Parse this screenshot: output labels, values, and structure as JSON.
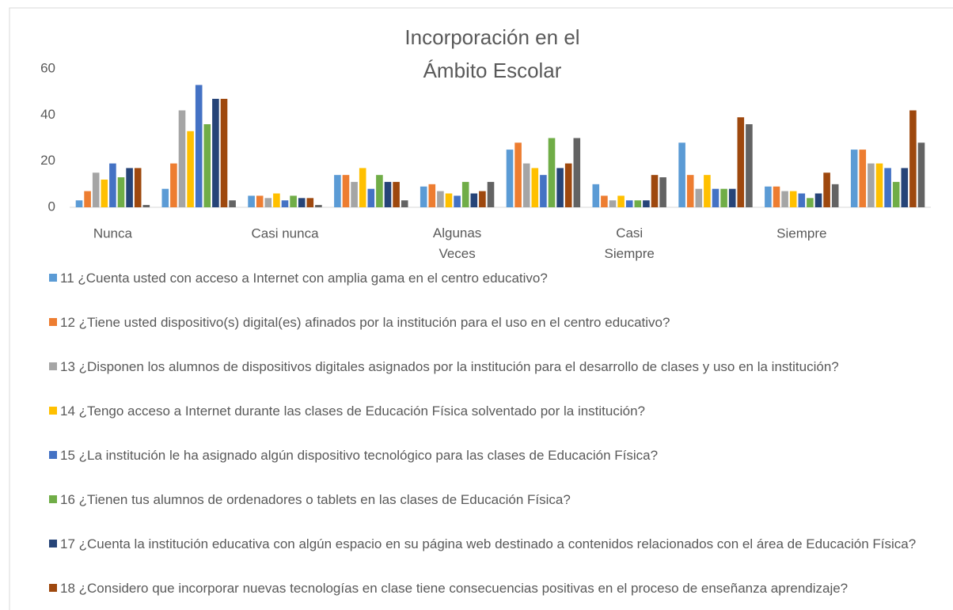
{
  "chart_data": {
    "type": "bar",
    "title": "Incorporación en el Ámbito Escolar",
    "categories": [
      "Nunca",
      null,
      "Casi nunca",
      null,
      "Algunas Veces",
      null,
      "Casi Siempre",
      null,
      "Siempre",
      null
    ],
    "series": [
      {
        "name": "11 ¿Cuenta usted con acceso a Internet con amplia gama en el centro educativo?",
        "color": "#5b9bd5",
        "values": [
          3,
          8,
          5,
          14,
          9,
          25,
          10,
          28,
          9,
          25
        ]
      },
      {
        "name": "12 ¿Tiene usted dispositivo(s) digital(es) afinados por la institución para el uso en el centro educativo?",
        "color": "#ed7d31",
        "values": [
          7,
          19,
          5,
          14,
          10,
          28,
          5,
          14,
          9,
          25
        ]
      },
      {
        "name": "13 ¿Disponen los alumnos de dispositivos digitales asignados por la institución para el desarrollo de clases y uso en la institución?",
        "color": "#a5a5a5",
        "values": [
          15,
          42,
          4,
          11,
          7,
          19,
          3,
          8,
          7,
          19
        ]
      },
      {
        "name": "14 ¿Tengo acceso a Internet durante las clases de Educación Física solventado por la institución?",
        "color": "#ffc000",
        "values": [
          12,
          33,
          6,
          17,
          6,
          17,
          5,
          14,
          7,
          19
        ]
      },
      {
        "name": "15 ¿La institución le ha asignado algún dispositivo tecnológico para las clases de Educación Física?",
        "color": "#4472c4",
        "values": [
          19,
          53,
          3,
          8,
          5,
          14,
          3,
          8,
          6,
          17
        ]
      },
      {
        "name": "16 ¿Tienen tus alumnos de ordenadores o tablets en las clases de Educación Física?",
        "color": "#70ad47",
        "values": [
          13,
          36,
          5,
          14,
          11,
          30,
          3,
          8,
          4,
          11
        ]
      },
      {
        "name": "17 ¿Cuenta la institución educativa con algún espacio en su página web destinado a contenidos relacionados con el área de Educación Física?",
        "color": "#264478",
        "values": [
          17,
          47,
          4,
          11,
          6,
          17,
          3,
          8,
          6,
          17
        ]
      },
      {
        "name": "18 ¿Considero que incorporar nuevas tecnologías en clase tiene consecuencias positivas en el proceso de enseñanza aprendizaje?",
        "color": "#9e480e",
        "values": [
          17,
          47,
          4,
          11,
          7,
          19,
          14,
          39,
          15,
          42
        ]
      },
      {
        "name": null,
        "color": "#636363",
        "values": [
          1,
          3,
          1,
          3,
          11,
          30,
          13,
          36,
          10,
          28
        ]
      }
    ],
    "ylim": [
      0,
      60
    ],
    "yticks": [
      0,
      20,
      40,
      60
    ],
    "grid": false
  }
}
